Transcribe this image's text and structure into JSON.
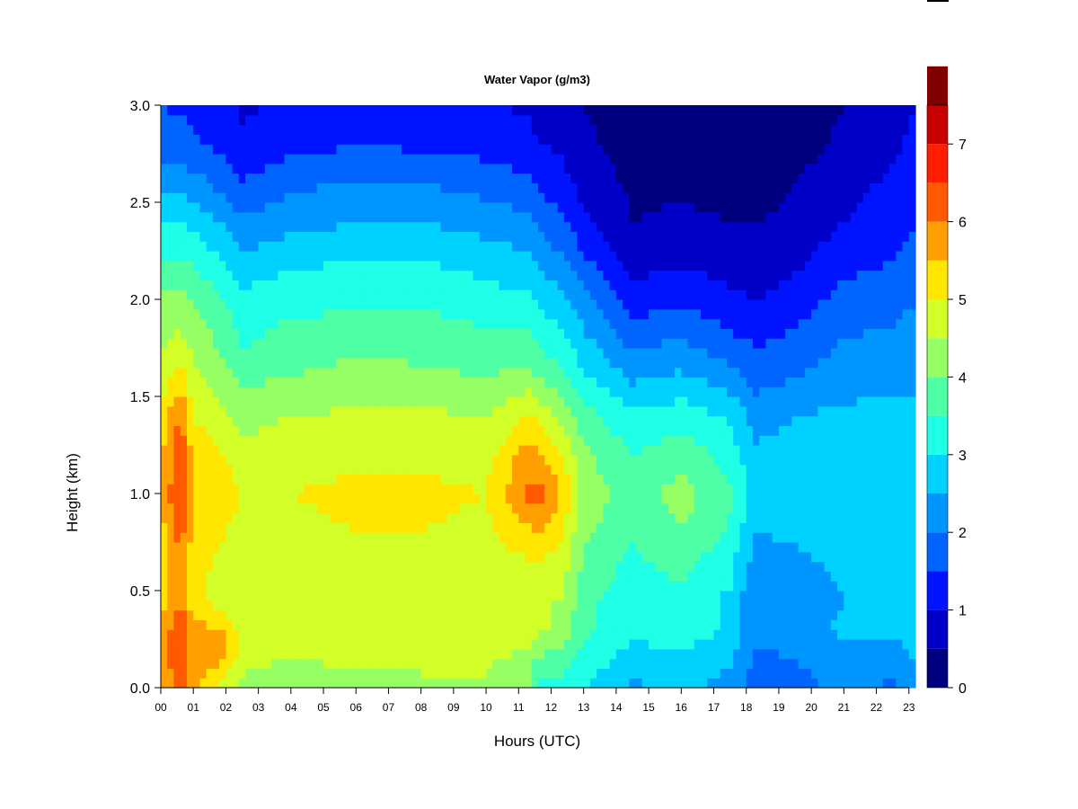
{
  "chart_data": {
    "type": "heatmap",
    "title": "Water Vapor (g/m3)",
    "xlabel": "Hours (UTC)",
    "ylabel": "Height (km)",
    "xlim": [
      0,
      23.2
    ],
    "ylim": [
      0.0,
      3.0
    ],
    "x_ticks": [
      "00",
      "01",
      "02",
      "03",
      "04",
      "05",
      "06",
      "07",
      "08",
      "09",
      "10",
      "11",
      "12",
      "13",
      "14",
      "15",
      "16",
      "17",
      "18",
      "19",
      "20",
      "21",
      "22",
      "23"
    ],
    "y_ticks": [
      "0.0",
      "0.5",
      "1.0",
      "1.5",
      "2.0",
      "2.5",
      "3.0"
    ],
    "colorbar": {
      "min": 0,
      "max": 7.5,
      "step": 0.5,
      "tick_labels": [
        "0",
        "1",
        "2",
        "3",
        "4",
        "5",
        "6",
        "7"
      ],
      "colors": [
        "#00007f",
        "#0000c8",
        "#0014ff",
        "#0064ff",
        "#0096ff",
        "#00d2ff",
        "#1effe6",
        "#4fffa6",
        "#96ff64",
        "#d2ff28",
        "#ffe600",
        "#ffa000",
        "#ff5a00",
        "#ff1e00",
        "#c80000",
        "#7f0000"
      ]
    },
    "profile_heights_km": [
      0.0,
      0.15,
      0.3,
      0.45,
      0.6,
      0.8,
      1.0,
      1.2,
      1.4,
      1.6,
      1.8,
      2.0,
      2.2,
      2.4,
      2.6,
      2.8,
      3.0
    ],
    "profiles": [
      {
        "hour": 0.0,
        "values": [
          5.6,
          5.8,
          5.7,
          5.3,
          5.2,
          5.3,
          5.5,
          5.4,
          5.1,
          4.7,
          4.4,
          4.1,
          3.5,
          3.0,
          2.3,
          1.8,
          1.5
        ]
      },
      {
        "hour": 0.6,
        "values": [
          6.1,
          6.3,
          6.4,
          6.0,
          6.0,
          6.2,
          6.6,
          6.4,
          6.1,
          5.3,
          4.6,
          4.1,
          3.5,
          3.0,
          2.3,
          1.7,
          1.4
        ]
      },
      {
        "hour": 1.0,
        "values": [
          5.6,
          5.8,
          5.7,
          5.2,
          5.2,
          5.3,
          5.5,
          5.3,
          5.0,
          4.6,
          4.3,
          4.0,
          3.4,
          2.9,
          2.2,
          1.6,
          1.4
        ]
      },
      {
        "hour": 2.0,
        "values": [
          4.6,
          5.6,
          5.5,
          4.6,
          4.8,
          5.0,
          5.2,
          5.0,
          4.6,
          4.2,
          3.8,
          3.5,
          3.0,
          2.4,
          1.8,
          1.3,
          1.1
        ]
      },
      {
        "hour": 2.5,
        "values": [
          4.4,
          4.6,
          4.8,
          4.5,
          4.5,
          4.8,
          5.0,
          4.7,
          4.3,
          3.9,
          3.4,
          3.2,
          2.6,
          2.1,
          1.5,
          1.1,
          0.9
        ]
      },
      {
        "hour": 4.0,
        "values": [
          4.2,
          4.5,
          4.9,
          4.6,
          4.7,
          4.9,
          5.0,
          4.8,
          4.5,
          4.0,
          3.7,
          3.3,
          2.9,
          2.3,
          1.9,
          1.3,
          1.1
        ]
      },
      {
        "hour": 6.0,
        "values": [
          4.3,
          4.6,
          5.0,
          4.7,
          4.8,
          5.0,
          5.1,
          4.9,
          4.6,
          4.2,
          3.8,
          3.4,
          3.0,
          2.5,
          2.0,
          1.5,
          1.2
        ]
      },
      {
        "hour": 8.0,
        "values": [
          4.4,
          4.6,
          5.0,
          4.7,
          4.8,
          5.0,
          5.1,
          4.9,
          4.6,
          4.1,
          3.8,
          3.4,
          3.0,
          2.5,
          2.0,
          1.4,
          1.2
        ]
      },
      {
        "hour": 10.0,
        "values": [
          4.4,
          4.6,
          4.9,
          4.6,
          4.7,
          4.9,
          5.0,
          4.8,
          4.5,
          4.0,
          3.6,
          3.2,
          2.8,
          2.3,
          1.8,
          1.3,
          1.1
        ]
      },
      {
        "hour": 11.3,
        "values": [
          4.0,
          4.3,
          4.8,
          4.6,
          4.8,
          5.4,
          6.1,
          5.8,
          5.0,
          4.2,
          3.6,
          3.1,
          2.6,
          2.1,
          1.6,
          1.2,
          0.9
        ]
      },
      {
        "hour": 11.6,
        "values": [
          3.3,
          3.9,
          4.6,
          4.5,
          4.8,
          5.5,
          6.2,
          5.6,
          4.9,
          4.0,
          3.4,
          2.9,
          2.4,
          1.9,
          1.4,
          1.0,
          0.8
        ]
      },
      {
        "hour": 12.3,
        "values": [
          3.4,
          3.8,
          4.4,
          4.5,
          4.7,
          5.1,
          5.5,
          5.0,
          4.4,
          3.6,
          3.1,
          2.7,
          2.1,
          1.6,
          1.2,
          0.9,
          0.7
        ]
      },
      {
        "hour": 13.0,
        "values": [
          3.0,
          3.3,
          3.6,
          3.7,
          3.9,
          4.1,
          4.3,
          4.1,
          3.7,
          3.1,
          2.6,
          2.2,
          1.6,
          1.1,
          0.8,
          0.6,
          0.5
        ]
      },
      {
        "hour": 14.5,
        "values": [
          2.4,
          2.8,
          3.1,
          3.1,
          3.3,
          3.6,
          3.8,
          3.5,
          3.1,
          2.4,
          1.8,
          1.2,
          0.8,
          0.5,
          0.4,
          0.3,
          0.2
        ]
      },
      {
        "hour": 16.0,
        "values": [
          2.6,
          2.9,
          3.3,
          3.4,
          3.6,
          4.0,
          4.2,
          3.8,
          3.3,
          2.6,
          2.0,
          1.4,
          0.9,
          0.6,
          0.4,
          0.3,
          0.2
        ]
      },
      {
        "hour": 17.5,
        "values": [
          2.3,
          2.6,
          2.9,
          2.9,
          3.1,
          3.4,
          3.6,
          3.3,
          2.9,
          2.2,
          1.6,
          1.1,
          0.8,
          0.5,
          0.3,
          0.3,
          0.2
        ]
      },
      {
        "hour": 18.3,
        "values": [
          1.6,
          1.9,
          2.1,
          2.0,
          2.2,
          2.5,
          2.7,
          2.6,
          2.3,
          1.8,
          1.4,
          1.0,
          0.7,
          0.5,
          0.3,
          0.2,
          0.2
        ]
      },
      {
        "hour": 19.5,
        "values": [
          1.8,
          2.0,
          2.2,
          2.1,
          2.3,
          2.6,
          2.8,
          2.7,
          2.5,
          2.0,
          1.6,
          1.2,
          0.9,
          0.6,
          0.5,
          0.3,
          0.3
        ]
      },
      {
        "hour": 21.0,
        "values": [
          2.1,
          2.4,
          2.6,
          2.5,
          2.6,
          2.8,
          2.9,
          2.8,
          2.6,
          2.3,
          2.0,
          1.7,
          1.3,
          1.0,
          0.8,
          0.6,
          0.5
        ]
      },
      {
        "hour": 22.5,
        "values": [
          1.9,
          2.3,
          2.6,
          2.6,
          2.6,
          2.7,
          2.8,
          2.8,
          2.6,
          2.4,
          2.1,
          1.8,
          1.5,
          1.3,
          1.1,
          0.9,
          0.8
        ]
      },
      {
        "hour": 23.2,
        "values": [
          2.2,
          2.5,
          2.7,
          2.7,
          2.7,
          2.8,
          2.9,
          2.8,
          2.6,
          2.4,
          2.2,
          2.0,
          1.7,
          1.5,
          1.3,
          1.1,
          1.0
        ]
      }
    ]
  }
}
